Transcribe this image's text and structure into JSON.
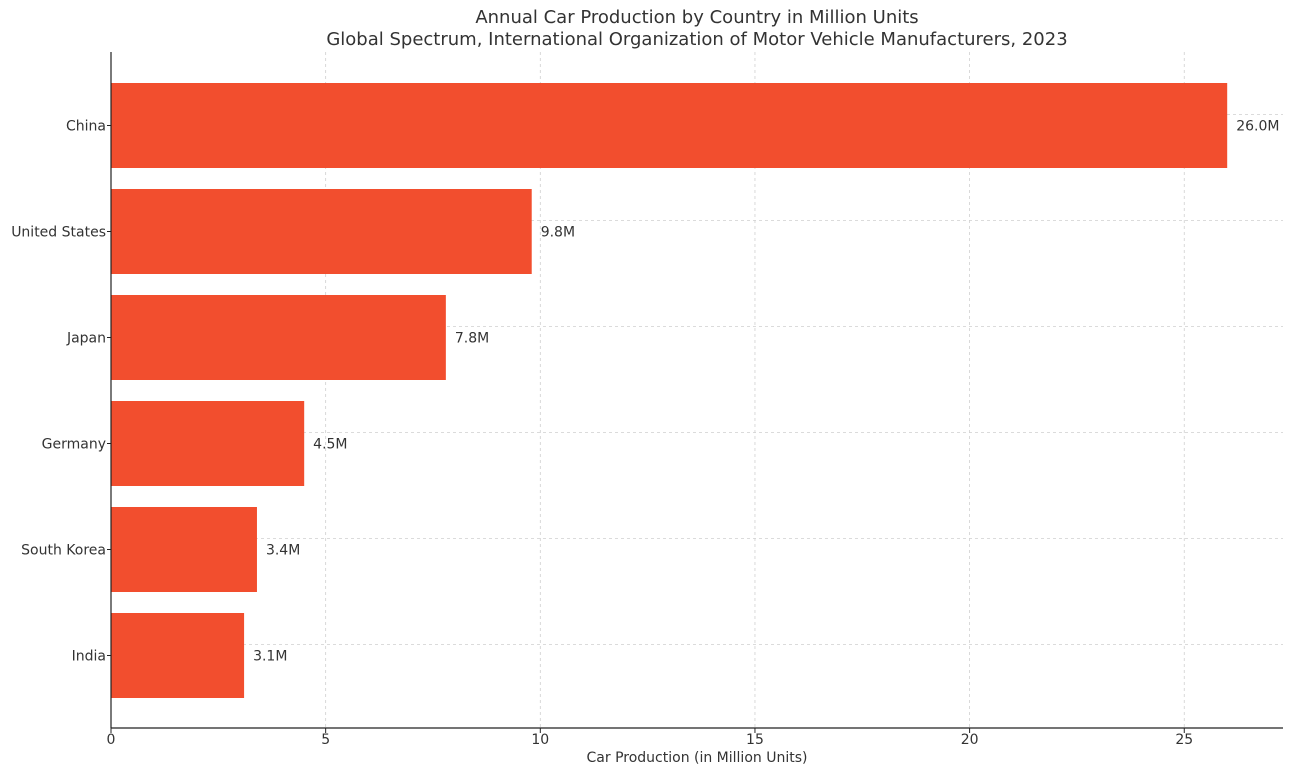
{
  "chart_data": {
    "type": "bar",
    "orientation": "horizontal",
    "title": "Annual Car Production by Country in Million Units",
    "subtitle": "Global Spectrum, International Organization of Motor Vehicle Manufacturers, 2023",
    "xlabel": "Car Production (in Million Units)",
    "ylabel": "",
    "categories": [
      "China",
      "United States",
      "Japan",
      "Germany",
      "South Korea",
      "India"
    ],
    "values": [
      26.0,
      9.8,
      7.8,
      4.5,
      3.4,
      3.1
    ],
    "data_labels": [
      "26.0M",
      "9.8M",
      "7.8M",
      "4.5M",
      "3.4M",
      "3.1M"
    ],
    "xlim": [
      0,
      27.3
    ],
    "x_ticks": [
      0,
      5,
      10,
      15,
      20,
      25
    ],
    "x_tick_labels": [
      "0",
      "5",
      "10",
      "15",
      "20",
      "25"
    ],
    "grid": true,
    "legend": "none",
    "bar_color": "#f24e2e"
  }
}
